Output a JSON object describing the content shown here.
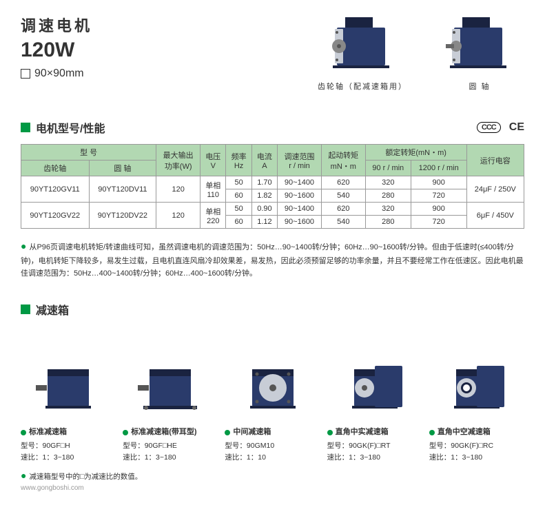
{
  "header": {
    "title": "调速电机",
    "wattage": "120W",
    "dimension": "90×90mm"
  },
  "motor_images": [
    {
      "caption": "齿轮轴（配减速箱用）"
    },
    {
      "caption": "圆 轴"
    }
  ],
  "section_spec": {
    "title": "电机型号/性能",
    "cert_ccc": "CCC",
    "cert_ce": "CE"
  },
  "table": {
    "headers": {
      "model": "型 号",
      "gear_shaft": "齿轮轴",
      "round_shaft": "圆 轴",
      "max_output": "最大输出\n功率(W)",
      "voltage": "电压\nV",
      "freq": "频率\nHz",
      "current": "电流\nA",
      "speed_range": "调速范围\nr / min",
      "start_torque": "起动转矩\nmN・m",
      "rated_torque": "额定转矩(mN・m)",
      "rt90": "90 r / min",
      "rt1200": "1200 r / min",
      "capacitor": "运行电容"
    },
    "rows": [
      {
        "gear_shaft": "90YT120GV11",
        "round_shaft": "90YT120DV11",
        "max_output": "120",
        "voltage": "单相\n110",
        "sub": [
          {
            "freq": "50",
            "current": "1.70",
            "range": "90~1400",
            "start_torque": "620",
            "rt90": "320",
            "rt1200": "900"
          },
          {
            "freq": "60",
            "current": "1.82",
            "range": "90~1600",
            "start_torque": "540",
            "rt90": "280",
            "rt1200": "720"
          }
        ],
        "capacitor": "24μF / 250V"
      },
      {
        "gear_shaft": "90YT120GV22",
        "round_shaft": "90YT120DV22",
        "max_output": "120",
        "voltage": "单相\n220",
        "sub": [
          {
            "freq": "50",
            "current": "0.90",
            "range": "90~1400",
            "start_torque": "620",
            "rt90": "320",
            "rt1200": "900"
          },
          {
            "freq": "60",
            "current": "1.12",
            "range": "90~1600",
            "start_torque": "540",
            "rt90": "280",
            "rt1200": "720"
          }
        ],
        "capacitor": "6μF / 450V"
      }
    ]
  },
  "note": "从P96页调速电机转矩/转速曲线可知，虽然调速电机的调速范围为：50Hz…90~1400转/分钟；60Hz…90~1600转/分钟。但由于低速时(≤400转/分钟)，电机转矩下降较多，易发生过载，且电机直连风扇冷却效果差，易发热，因此必须预留足够的功率余量，并且不要经常工作在低速区。因此电机最佳调速范围为：50Hz…400~1400转/分钟；60Hz…400~1600转/分钟。",
  "section_gearbox": {
    "title": "减速箱"
  },
  "gearboxes": [
    {
      "name": "标准减速箱",
      "model_label": "型号：",
      "model": "90GF□H",
      "ratio_label": "速比：",
      "ratio": "1：3~180"
    },
    {
      "name": "标准减速箱(带耳型)",
      "model_label": "型号：",
      "model": "90GF□HE",
      "ratio_label": "速比：",
      "ratio": "1：3~180"
    },
    {
      "name": "中间减速箱",
      "model_label": "型号：",
      "model": "90GM10",
      "ratio_label": "速比：",
      "ratio": "1：10"
    },
    {
      "name": "直角中实减速箱",
      "model_label": "型号：",
      "model": "90GK(F)□RT",
      "ratio_label": "速比：",
      "ratio": "1：3~180"
    },
    {
      "name": "直角中空减速箱",
      "model_label": "型号：",
      "model": "90GK(F)□RC",
      "ratio_label": "速比：",
      "ratio": "1：3~180"
    }
  ],
  "footer_note": "减速箱型号中的□为减速比的数值。",
  "watermark": "www.gongboshi.com",
  "colors": {
    "accent_green": "#009944",
    "table_header_bg": "#b2d8b2",
    "motor_body": "#2a3b6b",
    "motor_dark": "#1a2340",
    "motor_face": "#c8cdd6"
  }
}
